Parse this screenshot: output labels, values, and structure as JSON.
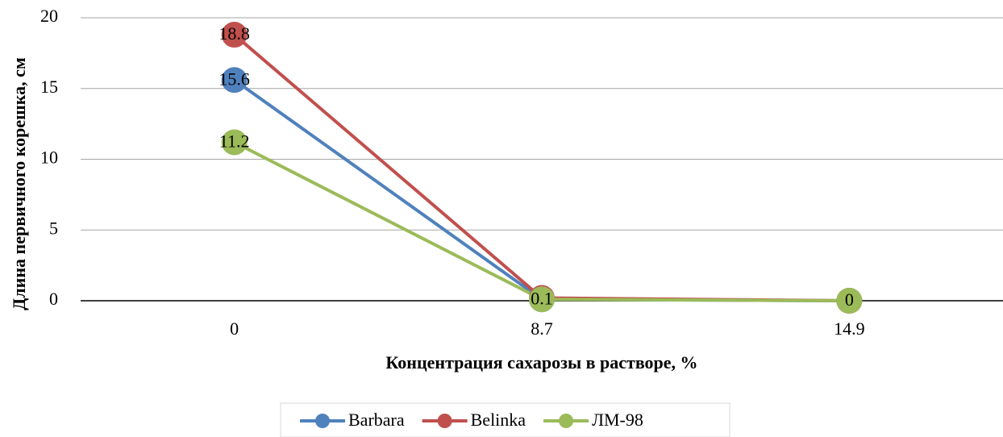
{
  "chart_data": {
    "type": "line",
    "x_label": "Концентрация сахарозы в растворе, %",
    "y_label": "Длина первичного корешка, см",
    "categories": [
      "0",
      "8.7",
      "14.9"
    ],
    "series": [
      {
        "name": "Barbara",
        "color": "#4f81bd",
        "values": [
          15.6,
          0.1,
          0
        ]
      },
      {
        "name": "Belinka",
        "color": "#c0504d",
        "values": [
          18.8,
          0.2,
          0
        ]
      },
      {
        "name": "ЛМ-98",
        "color": "#9bbb59",
        "values": [
          11.2,
          0.1,
          0
        ]
      }
    ],
    "ylim": [
      0,
      20
    ],
    "yticks": [
      0,
      5,
      10,
      15,
      20
    ],
    "grid": true,
    "legend": "bottom"
  }
}
